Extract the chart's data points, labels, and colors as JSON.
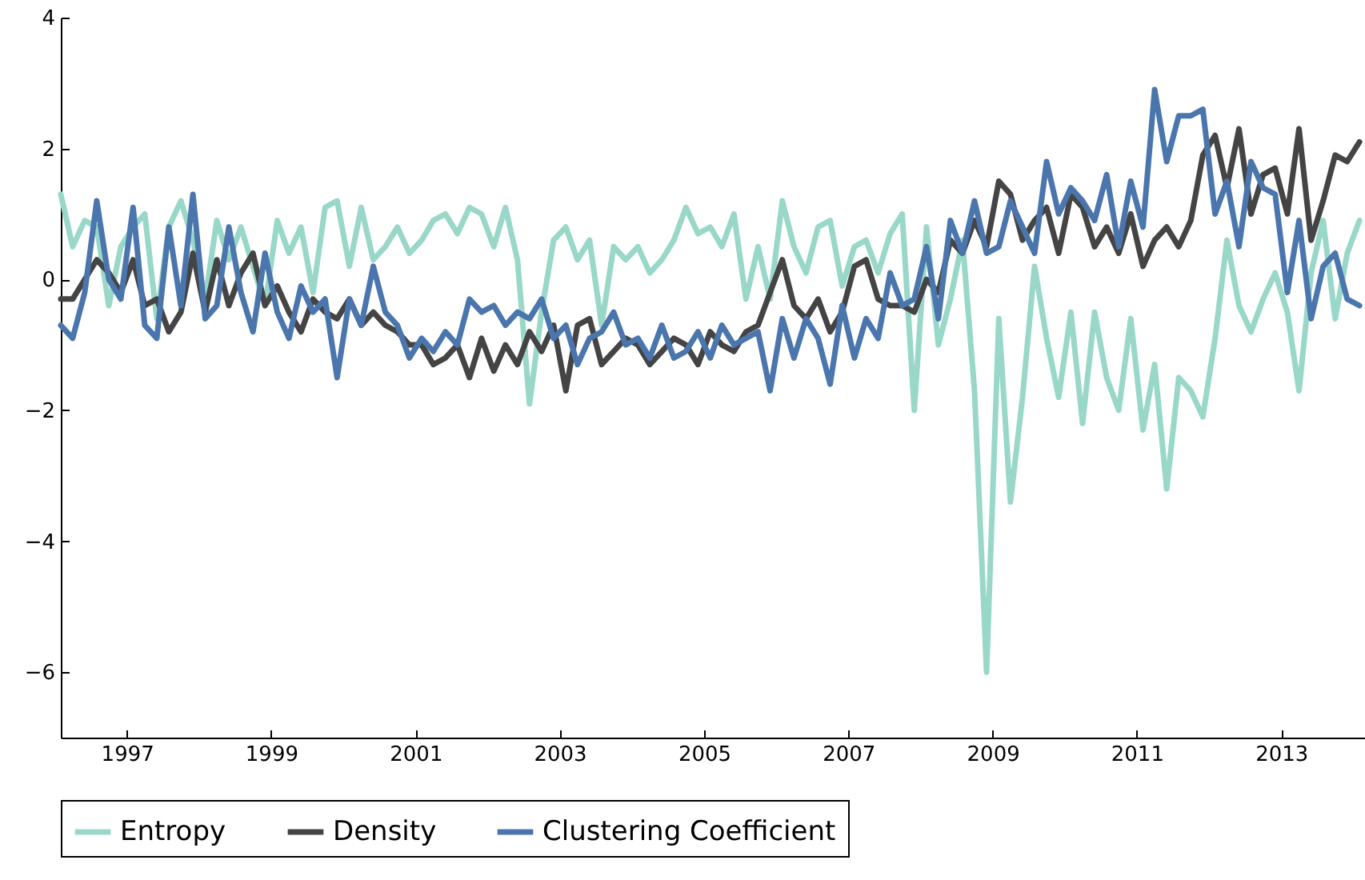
{
  "chart_data": {
    "type": "line",
    "xlim": [
      "1996-02",
      "2014-03"
    ],
    "ylim": [
      -7,
      4
    ],
    "yticks": [
      {
        "value": -6,
        "label": "−6"
      },
      {
        "value": -4,
        "label": "−4"
      },
      {
        "value": -2,
        "label": "−2"
      },
      0,
      2,
      4
    ],
    "xticks": [
      {
        "value": "1997",
        "label": "1997"
      },
      {
        "value": "1999",
        "label": "1999"
      },
      {
        "value": "2001",
        "label": "2001"
      },
      {
        "value": "2003",
        "label": "2003"
      },
      {
        "value": "2005",
        "label": "2005"
      },
      {
        "value": "2007",
        "label": "2007"
      },
      {
        "value": "2009",
        "label": "2009"
      },
      {
        "value": "2011",
        "label": "2011"
      },
      {
        "value": "2013",
        "label": "2013"
      }
    ],
    "x": [
      "1996-02",
      "1996-04",
      "1996-06",
      "1996-08",
      "1996-10",
      "1996-12",
      "1997-02",
      "1997-04",
      "1997-06",
      "1997-08",
      "1997-10",
      "1997-12",
      "1998-02",
      "1998-04",
      "1998-06",
      "1998-08",
      "1998-10",
      "1998-12",
      "1999-02",
      "1999-04",
      "1999-06",
      "1999-08",
      "1999-10",
      "1999-12",
      "2000-02",
      "2000-04",
      "2000-06",
      "2000-08",
      "2000-10",
      "2000-12",
      "2001-02",
      "2001-04",
      "2001-06",
      "2001-08",
      "2001-10",
      "2001-12",
      "2002-02",
      "2002-04",
      "2002-06",
      "2002-08",
      "2002-10",
      "2002-12",
      "2003-02",
      "2003-04",
      "2003-06",
      "2003-08",
      "2003-10",
      "2003-12",
      "2004-02",
      "2004-04",
      "2004-06",
      "2004-08",
      "2004-10",
      "2004-12",
      "2005-02",
      "2005-04",
      "2005-06",
      "2005-08",
      "2005-10",
      "2005-12",
      "2006-02",
      "2006-04",
      "2006-06",
      "2006-08",
      "2006-10",
      "2006-12",
      "2007-02",
      "2007-04",
      "2007-06",
      "2007-08",
      "2007-10",
      "2007-12",
      "2008-02",
      "2008-04",
      "2008-06",
      "2008-08",
      "2008-10",
      "2008-12",
      "2009-02",
      "2009-04",
      "2009-06",
      "2009-08",
      "2009-10",
      "2009-12",
      "2010-02",
      "2010-04",
      "2010-06",
      "2010-08",
      "2010-10",
      "2010-12",
      "2011-02",
      "2011-04",
      "2011-06",
      "2011-08",
      "2011-10",
      "2011-12",
      "2012-02",
      "2012-04",
      "2012-06",
      "2012-08",
      "2012-10",
      "2012-12",
      "2013-02",
      "2013-04",
      "2013-06",
      "2013-08",
      "2013-10",
      "2013-12",
      "2014-02"
    ],
    "series": [
      {
        "name": "Entropy",
        "color": "#99d8c9",
        "values": [
          1.3,
          0.5,
          0.9,
          0.8,
          -0.4,
          0.5,
          0.8,
          1.0,
          -0.6,
          0.8,
          1.2,
          0.6,
          -0.3,
          0.9,
          0.3,
          0.8,
          0.2,
          -0.4,
          0.9,
          0.4,
          0.8,
          -0.2,
          1.1,
          1.2,
          0.2,
          1.1,
          0.3,
          0.5,
          0.8,
          0.4,
          0.6,
          0.9,
          1.0,
          0.7,
          1.1,
          1.0,
          0.5,
          1.1,
          0.3,
          -1.9,
          -0.5,
          0.6,
          0.8,
          0.3,
          0.6,
          -0.7,
          0.5,
          0.3,
          0.5,
          0.1,
          0.3,
          0.6,
          1.1,
          0.7,
          0.8,
          0.5,
          1.0,
          -0.3,
          0.5,
          -0.3,
          1.2,
          0.5,
          0.1,
          0.8,
          0.9,
          -0.1,
          0.5,
          0.6,
          0.1,
          0.7,
          1.0,
          -2.0,
          0.8,
          -1.0,
          -0.3,
          0.6,
          -1.7,
          -6.0,
          -0.6,
          -3.4,
          -1.8,
          0.2,
          -0.9,
          -1.8,
          -0.5,
          -2.2,
          -0.5,
          -1.5,
          -2.0,
          -0.6,
          -2.3,
          -1.3,
          -3.2,
          -1.5,
          -1.7,
          -2.1,
          -0.9,
          0.6,
          -0.4,
          -0.8,
          -0.3,
          0.1,
          -0.5,
          -1.7,
          0.1,
          0.9,
          -0.6,
          0.4,
          0.9
        ]
      },
      {
        "name": "Density",
        "color": "#444444",
        "values": [
          -0.3,
          -0.3,
          0.0,
          0.3,
          0.1,
          -0.2,
          0.3,
          -0.4,
          -0.3,
          -0.8,
          -0.5,
          0.4,
          -0.5,
          0.3,
          -0.4,
          0.1,
          0.4,
          -0.4,
          -0.1,
          -0.5,
          -0.8,
          -0.3,
          -0.5,
          -0.6,
          -0.3,
          -0.7,
          -0.5,
          -0.7,
          -0.8,
          -1.0,
          -1.0,
          -1.3,
          -1.2,
          -1.0,
          -1.5,
          -0.9,
          -1.4,
          -1.0,
          -1.3,
          -0.8,
          -1.1,
          -0.7,
          -1.7,
          -0.7,
          -0.6,
          -1.3,
          -1.1,
          -0.9,
          -1.0,
          -1.3,
          -1.1,
          -0.9,
          -1.0,
          -1.3,
          -0.8,
          -1.0,
          -1.1,
          -0.8,
          -0.7,
          -0.2,
          0.3,
          -0.4,
          -0.6,
          -0.3,
          -0.8,
          -0.5,
          0.2,
          0.3,
          -0.3,
          -0.4,
          -0.4,
          -0.5,
          0.0,
          -0.2,
          0.6,
          0.4,
          0.9,
          0.5,
          1.5,
          1.3,
          0.6,
          0.9,
          1.1,
          0.4,
          1.3,
          1.1,
          0.5,
          0.8,
          0.4,
          1.0,
          0.2,
          0.6,
          0.8,
          0.5,
          0.9,
          1.9,
          2.2,
          1.4,
          2.3,
          1.0,
          1.6,
          1.7,
          1.0,
          2.3,
          0.6,
          1.2,
          1.9,
          1.8,
          2.1
        ]
      },
      {
        "name": "Clustering Coefficient",
        "color": "#4a76ad",
        "values": [
          -0.7,
          -0.9,
          -0.2,
          1.2,
          0.0,
          -0.3,
          1.1,
          -0.7,
          -0.9,
          0.8,
          -0.4,
          1.3,
          -0.6,
          -0.4,
          0.8,
          -0.2,
          -0.8,
          0.4,
          -0.5,
          -0.9,
          -0.1,
          -0.5,
          -0.3,
          -1.5,
          -0.3,
          -0.7,
          0.2,
          -0.5,
          -0.7,
          -1.2,
          -0.9,
          -1.1,
          -0.8,
          -1.0,
          -0.3,
          -0.5,
          -0.4,
          -0.7,
          -0.5,
          -0.6,
          -0.3,
          -0.9,
          -0.7,
          -1.3,
          -0.9,
          -0.8,
          -0.5,
          -1.0,
          -0.9,
          -1.2,
          -0.7,
          -1.2,
          -1.1,
          -0.8,
          -1.2,
          -0.7,
          -1.0,
          -0.9,
          -0.8,
          -1.7,
          -0.6,
          -1.2,
          -0.6,
          -0.9,
          -1.6,
          -0.4,
          -1.2,
          -0.6,
          -0.9,
          0.1,
          -0.4,
          -0.3,
          0.5,
          -0.6,
          0.9,
          0.4,
          1.2,
          0.4,
          0.5,
          1.2,
          0.8,
          0.4,
          1.8,
          1.0,
          1.4,
          1.2,
          0.9,
          1.6,
          0.5,
          1.5,
          0.8,
          2.9,
          1.8,
          2.5,
          2.5,
          2.6,
          1.0,
          1.5,
          0.5,
          1.8,
          1.4,
          1.3,
          -0.2,
          0.9,
          -0.6,
          0.2,
          0.4,
          -0.3,
          -0.4
        ]
      }
    ],
    "legend": "bottom",
    "grid": false,
    "line_style": "solid",
    "marker": "none"
  }
}
